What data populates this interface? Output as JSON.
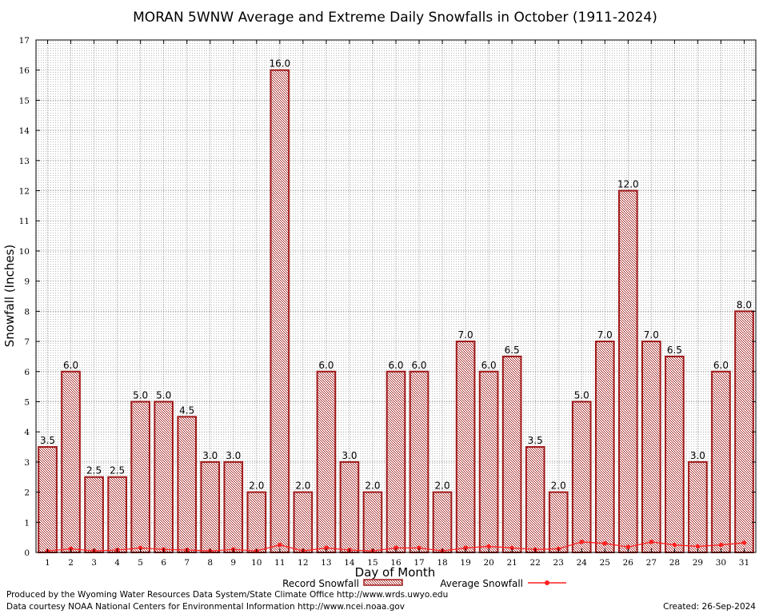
{
  "chart_data": {
    "type": "bar",
    "title": "MORAN 5WNW Average and Extreme Daily Snowfalls in October (1911-2024)",
    "xlabel": "Day of Month",
    "ylabel": "Snowfall (Inches)",
    "ylim": [
      0,
      17
    ],
    "yticks": [
      0,
      1,
      2,
      3,
      4,
      5,
      6,
      7,
      8,
      9,
      10,
      11,
      12,
      13,
      14,
      15,
      16,
      17
    ],
    "grid": true,
    "legend_position": "bottom",
    "categories": [
      "1",
      "2",
      "3",
      "4",
      "5",
      "6",
      "7",
      "8",
      "9",
      "10",
      "11",
      "12",
      "13",
      "14",
      "15",
      "16",
      "17",
      "18",
      "19",
      "20",
      "21",
      "22",
      "23",
      "24",
      "25",
      "26",
      "27",
      "28",
      "29",
      "30",
      "31"
    ],
    "series": [
      {
        "name": "Record Snowfall",
        "kind": "bar",
        "color": "#a01818",
        "values": [
          3.5,
          6.0,
          2.5,
          2.5,
          5.0,
          5.0,
          4.5,
          3.0,
          3.0,
          2.0,
          16.0,
          2.0,
          6.0,
          3.0,
          2.0,
          6.0,
          6.0,
          2.0,
          7.0,
          6.0,
          6.5,
          3.5,
          2.0,
          5.0,
          7.0,
          12.0,
          7.0,
          6.5,
          3.0,
          6.0,
          8.0
        ],
        "labels": [
          "3.5",
          "6.0",
          "2.5",
          "2.5",
          "5.0",
          "5.0",
          "4.5",
          "3.0",
          "3.0",
          "2.0",
          "16.0",
          "2.0",
          "6.0",
          "3.0",
          "2.0",
          "6.0",
          "6.0",
          "2.0",
          "7.0",
          "6.0",
          "6.5",
          "3.5",
          "2.0",
          "5.0",
          "7.0",
          "12.0",
          "7.0",
          "6.5",
          "3.0",
          "6.0",
          "8.0"
        ]
      },
      {
        "name": "Average Snowfall",
        "kind": "line",
        "color": "#ff2020",
        "values": [
          0.05,
          0.12,
          0.05,
          0.08,
          0.15,
          0.1,
          0.08,
          0.05,
          0.1,
          0.05,
          0.25,
          0.05,
          0.15,
          0.08,
          0.05,
          0.15,
          0.15,
          0.05,
          0.15,
          0.2,
          0.15,
          0.1,
          0.12,
          0.35,
          0.3,
          0.18,
          0.35,
          0.25,
          0.2,
          0.25,
          0.32
        ]
      }
    ]
  },
  "footer": {
    "produced_by": "Produced by the Wyoming Water Resources Data System/State Climate Office http://www.wrds.uwyo.edu",
    "courtesy": "Data courtesy NOAA National Centers for Environmental Information http://www.ncei.noaa.gov",
    "created": "Created:  26-Sep-2024"
  }
}
